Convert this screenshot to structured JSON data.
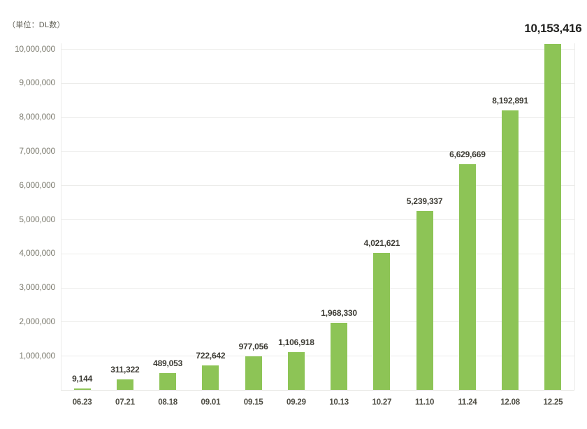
{
  "chart": {
    "unit_label": "（単位：DL数）",
    "bar_color": "#8dc456",
    "grid_color": "#ececea",
    "axis_line_color": "#e4e4e0",
    "value_label_color": "#3c3b34",
    "value_label_emphasis_color": "#222220",
    "x_label_color": "#4e4d44",
    "y_label_color": "#7c7b6f"
  },
  "chart_data": {
    "type": "bar",
    "title": "",
    "unit_label": "（単位：DL数）",
    "categories": [
      "06.23",
      "07.21",
      "08.18",
      "09.01",
      "09.15",
      "09.29",
      "10.13",
      "10.27",
      "11.10",
      "11.24",
      "12.08",
      "12.25"
    ],
    "values": [
      9144,
      311322,
      489053,
      722642,
      977056,
      1106918,
      1968330,
      4021621,
      5239337,
      6629669,
      8192891,
      10153416
    ],
    "value_labels": [
      "9,144",
      "311,322",
      "489,053",
      "722,642",
      "977,056",
      "1,106,918",
      "1,968,330",
      "4,021,621",
      "5,239,337",
      "6,629,669",
      "8,192,891",
      "10,153,416"
    ],
    "emphasized_index": 11,
    "xlabel": "",
    "ylabel": "",
    "ylim": [
      0,
      10000000
    ],
    "y_tick_step": 1000000,
    "y_tick_labels": [
      "1,000,000",
      "2,000,000",
      "3,000,000",
      "4,000,000",
      "5,000,000",
      "6,000,000",
      "7,000,000",
      "8,000,000",
      "9,000,000",
      "10,000,000"
    ],
    "grid": "horizontal",
    "legend": "none",
    "bar_color": "#8dc456"
  }
}
